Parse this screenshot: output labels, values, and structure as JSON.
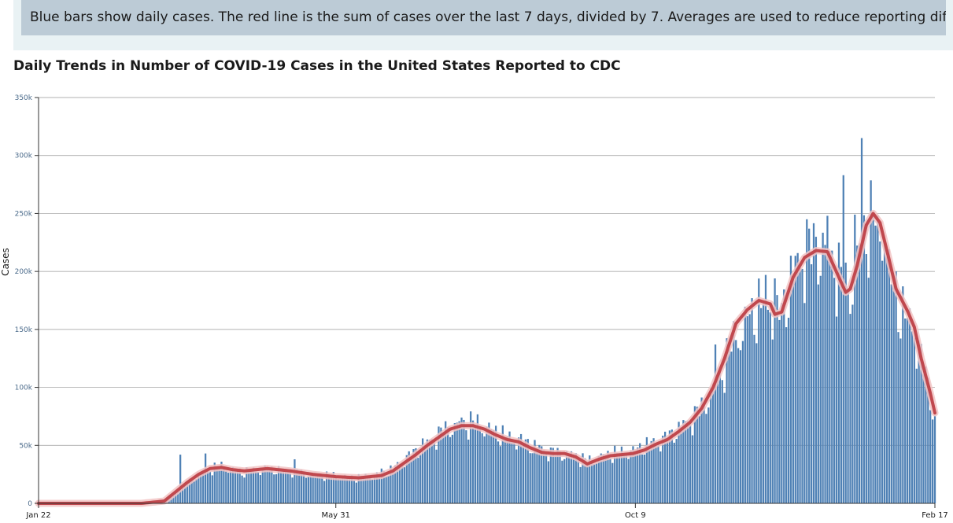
{
  "note": "Blue bars show daily cases. The red line is the sum of cases over the last 7 days, divided by 7. Averages are used to reduce reporting differences.",
  "title": "Daily Trends in Number of COVID-19 Cases in the United States Reported to CDC",
  "colors": {
    "bar": "#4f81b5",
    "line": "#c0484e",
    "line_glow": "#f2c4c4",
    "grid": "#999999"
  },
  "chart_data": {
    "type": "bar",
    "ylabel": "Cases",
    "xlabel": "",
    "ylim": [
      0,
      350000
    ],
    "yticks": [
      0,
      50000,
      100000,
      150000,
      200000,
      250000,
      300000,
      350000
    ],
    "ytick_labels": [
      "0",
      "50k",
      "100k",
      "150k",
      "200k",
      "250k",
      "300k",
      "350k"
    ],
    "x_tick_labels": [
      "Jan 22",
      "May 31",
      "Oct 9",
      "Feb 17"
    ],
    "x_tick_days": [
      0,
      130,
      261,
      392
    ],
    "n_days": 393,
    "series": [
      {
        "name": "Daily cases",
        "kind": "bars",
        "control_points": [
          [
            0,
            0
          ],
          [
            45,
            0
          ],
          [
            55,
            2000
          ],
          [
            60,
            10000
          ],
          [
            65,
            18000
          ],
          [
            70,
            25000
          ],
          [
            75,
            30000
          ],
          [
            80,
            32000
          ],
          [
            85,
            29000
          ],
          [
            90,
            27000
          ],
          [
            100,
            30000
          ],
          [
            110,
            28000
          ],
          [
            120,
            25000
          ],
          [
            130,
            24000
          ],
          [
            140,
            22000
          ],
          [
            150,
            25000
          ],
          [
            155,
            30000
          ],
          [
            160,
            38000
          ],
          [
            165,
            45000
          ],
          [
            170,
            52000
          ],
          [
            175,
            60000
          ],
          [
            180,
            66000
          ],
          [
            185,
            68000
          ],
          [
            190,
            70000
          ],
          [
            195,
            66000
          ],
          [
            200,
            62000
          ],
          [
            205,
            57000
          ],
          [
            210,
            55000
          ],
          [
            215,
            51000
          ],
          [
            220,
            47000
          ],
          [
            225,
            44000
          ],
          [
            230,
            43000
          ],
          [
            235,
            42000
          ],
          [
            240,
            36000
          ],
          [
            245,
            40000
          ],
          [
            250,
            43000
          ],
          [
            255,
            44000
          ],
          [
            260,
            45000
          ],
          [
            265,
            50000
          ],
          [
            270,
            53000
          ],
          [
            275,
            57000
          ],
          [
            280,
            65000
          ],
          [
            285,
            72000
          ],
          [
            290,
            82000
          ],
          [
            295,
            100000
          ],
          [
            300,
            120000
          ],
          [
            305,
            145000
          ],
          [
            310,
            160000
          ],
          [
            315,
            170000
          ],
          [
            320,
            175000
          ],
          [
            322,
            162000
          ],
          [
            325,
            165000
          ],
          [
            330,
            200000
          ],
          [
            335,
            215000
          ],
          [
            340,
            222000
          ],
          [
            345,
            220000
          ],
          [
            350,
            200000
          ],
          [
            353,
            185000
          ],
          [
            355,
            185000
          ],
          [
            358,
            210000
          ],
          [
            362,
            240000
          ],
          [
            365,
            245000
          ],
          [
            368,
            235000
          ],
          [
            372,
            200000
          ],
          [
            375,
            175000
          ],
          [
            380,
            160000
          ],
          [
            383,
            150000
          ],
          [
            386,
            125000
          ],
          [
            388,
            110000
          ],
          [
            390,
            95000
          ],
          [
            392,
            70000
          ]
        ]
      },
      {
        "name": "7-day average",
        "kind": "line",
        "control_points": [
          [
            0,
            0
          ],
          [
            45,
            0
          ],
          [
            55,
            2000
          ],
          [
            60,
            10000
          ],
          [
            65,
            18000
          ],
          [
            70,
            25000
          ],
          [
            75,
            30000
          ],
          [
            80,
            31000
          ],
          [
            85,
            29000
          ],
          [
            90,
            28000
          ],
          [
            100,
            30000
          ],
          [
            110,
            28000
          ],
          [
            120,
            25000
          ],
          [
            130,
            23000
          ],
          [
            140,
            22000
          ],
          [
            150,
            24000
          ],
          [
            155,
            28000
          ],
          [
            160,
            35000
          ],
          [
            165,
            42000
          ],
          [
            170,
            50000
          ],
          [
            175,
            57000
          ],
          [
            180,
            64000
          ],
          [
            185,
            67000
          ],
          [
            190,
            67000
          ],
          [
            195,
            64000
          ],
          [
            200,
            59000
          ],
          [
            205,
            55000
          ],
          [
            210,
            53000
          ],
          [
            215,
            48000
          ],
          [
            220,
            44000
          ],
          [
            225,
            43000
          ],
          [
            230,
            43000
          ],
          [
            235,
            40000
          ],
          [
            240,
            34000
          ],
          [
            245,
            38000
          ],
          [
            250,
            41000
          ],
          [
            255,
            42000
          ],
          [
            260,
            43000
          ],
          [
            265,
            46000
          ],
          [
            270,
            51000
          ],
          [
            275,
            55000
          ],
          [
            280,
            62000
          ],
          [
            285,
            70000
          ],
          [
            290,
            82000
          ],
          [
            295,
            100000
          ],
          [
            300,
            125000
          ],
          [
            305,
            155000
          ],
          [
            310,
            167000
          ],
          [
            315,
            175000
          ],
          [
            320,
            172000
          ],
          [
            322,
            163000
          ],
          [
            325,
            165000
          ],
          [
            330,
            195000
          ],
          [
            335,
            212000
          ],
          [
            340,
            218000
          ],
          [
            345,
            217000
          ],
          [
            350,
            195000
          ],
          [
            353,
            182000
          ],
          [
            355,
            185000
          ],
          [
            358,
            205000
          ],
          [
            362,
            240000
          ],
          [
            365,
            250000
          ],
          [
            368,
            242000
          ],
          [
            372,
            210000
          ],
          [
            375,
            185000
          ],
          [
            380,
            166000
          ],
          [
            383,
            152000
          ],
          [
            386,
            125000
          ],
          [
            388,
            110000
          ],
          [
            390,
            95000
          ],
          [
            392,
            78000
          ]
        ]
      }
    ],
    "bar_spikes": [
      [
        62,
        42000
      ],
      [
        73,
        43000
      ],
      [
        112,
        38000
      ],
      [
        150,
        30000
      ],
      [
        168,
        56000
      ],
      [
        185,
        74000
      ],
      [
        296,
        137000
      ],
      [
        308,
        140000
      ],
      [
        318,
        197000
      ],
      [
        322,
        194000
      ],
      [
        336,
        245000
      ],
      [
        345,
        248000
      ],
      [
        352,
        283000
      ],
      [
        357,
        249000
      ],
      [
        360,
        315000
      ],
      [
        365,
        250000
      ],
      [
        367,
        248000
      ],
      [
        370,
        225000
      ],
      [
        375,
        200000
      ],
      [
        380,
        160000
      ]
    ]
  }
}
